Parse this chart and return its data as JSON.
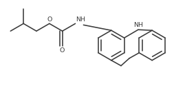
{
  "bg_color": "#ffffff",
  "line_color": "#3a3a3a",
  "line_width": 1.15,
  "text_color": "#3a3a3a",
  "font_size": 6.8,
  "fig_width": 2.85,
  "fig_height": 1.31,
  "dpi": 100,
  "xlim": [
    0,
    285
  ],
  "ylim": [
    0,
    131
  ]
}
